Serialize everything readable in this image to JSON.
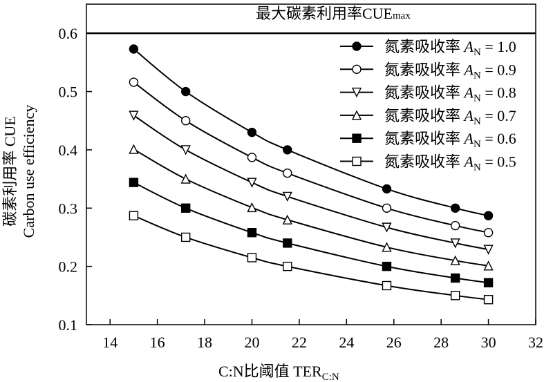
{
  "chart_data": {
    "type": "line",
    "xlabel": "C:N比阈值 TER",
    "xlabel_sub": "C:N",
    "ylabel_line1": "碳素利用率 CUE",
    "ylabel_line2": "Carbon use efficiency",
    "xlim": [
      13,
      32
    ],
    "ylim": [
      0.1,
      0.65
    ],
    "x_ticks": [
      14,
      16,
      18,
      20,
      22,
      24,
      26,
      28,
      30,
      32
    ],
    "x_tick_labels": [
      "14",
      "16",
      "18",
      "20",
      "22",
      "24",
      "26",
      "28",
      "30",
      "32"
    ],
    "y_ticks": [
      0.1,
      0.2,
      0.3,
      0.4,
      0.5,
      0.6
    ],
    "y_tick_labels": [
      "0.1",
      "0.2",
      "0.3",
      "0.4",
      "0.5",
      "0.6"
    ],
    "reference_line": {
      "value": 0.6,
      "label": "最大碳素利用率CUE",
      "label_sub": "max"
    },
    "legend_position": "top-right",
    "legend_prefix": "氮素吸收率 ",
    "legend_var": "A",
    "legend_var_sub": "N",
    "x": [
      15.0,
      17.2,
      20.0,
      21.5,
      25.7,
      28.6,
      30.0
    ],
    "series": [
      {
        "name": "1.0",
        "marker": "circle-filled",
        "values": [
          0.573,
          0.5,
          0.43,
          0.4,
          0.333,
          0.3,
          0.287
        ]
      },
      {
        "name": "0.9",
        "marker": "circle-open",
        "values": [
          0.516,
          0.45,
          0.387,
          0.36,
          0.3,
          0.27,
          0.258
        ]
      },
      {
        "name": "0.8",
        "marker": "triangle-down-open",
        "values": [
          0.459,
          0.4,
          0.344,
          0.32,
          0.267,
          0.24,
          0.229
        ]
      },
      {
        "name": "0.7",
        "marker": "triangle-up-open",
        "values": [
          0.401,
          0.35,
          0.301,
          0.28,
          0.233,
          0.21,
          0.201
        ]
      },
      {
        "name": "0.6",
        "marker": "square-filled",
        "values": [
          0.344,
          0.3,
          0.258,
          0.24,
          0.2,
          0.18,
          0.172
        ]
      },
      {
        "name": "0.5",
        "marker": "square-open",
        "values": [
          0.287,
          0.25,
          0.215,
          0.2,
          0.167,
          0.15,
          0.143
        ]
      }
    ]
  }
}
